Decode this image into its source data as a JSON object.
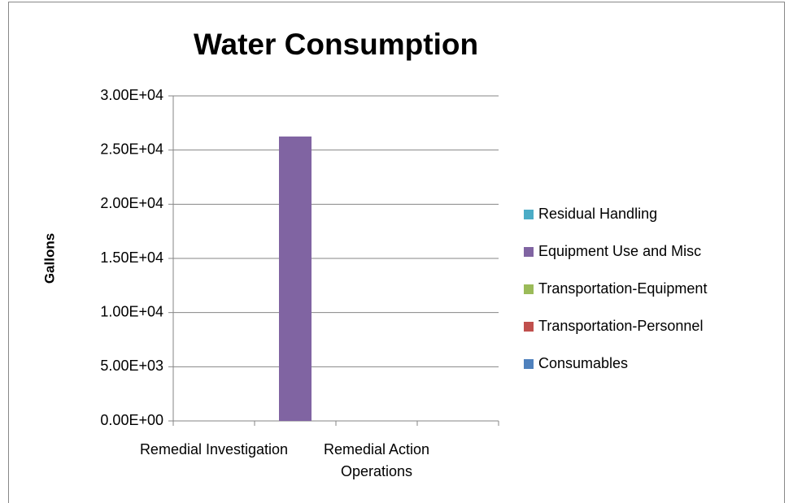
{
  "chart_data": {
    "type": "stacked-bar",
    "title": "Water Consumption",
    "y_label": "Gallons",
    "categories": [
      "Remedial Investigation",
      null,
      "Remedial Action Operations",
      null
    ],
    "series": [
      {
        "name": "Consumables",
        "color": "#4f81bd",
        "values": [
          0,
          0,
          0,
          0
        ]
      },
      {
        "name": "Transportation-Personnel",
        "color": "#c0504d",
        "values": [
          0,
          0,
          0,
          0
        ]
      },
      {
        "name": "Transportation-Equipment",
        "color": "#9bbb59",
        "values": [
          0,
          0,
          0,
          0
        ]
      },
      {
        "name": "Equipment Use and Misc",
        "color": "#8064a2",
        "values": [
          0,
          26250,
          0,
          0
        ]
      },
      {
        "name": "Residual Handling",
        "color": "#4bacc6",
        "values": [
          0,
          0,
          0,
          0
        ]
      }
    ],
    "ylim": [
      0,
      30000
    ],
    "yticks": [
      {
        "value": 0,
        "label": "0.00E+00"
      },
      {
        "value": 5000,
        "label": "5.00E+03"
      },
      {
        "value": 10000,
        "label": "1.00E+04"
      },
      {
        "value": 15000,
        "label": "1.50E+04"
      },
      {
        "value": 20000,
        "label": "2.00E+04"
      },
      {
        "value": 25000,
        "label": "2.50E+04"
      },
      {
        "value": 30000,
        "label": "3.00E+04"
      }
    ],
    "grid": true,
    "legend": "right"
  }
}
